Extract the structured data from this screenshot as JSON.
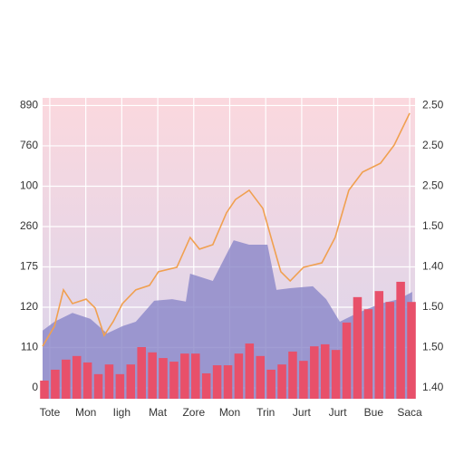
{
  "chart_data": {
    "type": "combo",
    "xlim": [
      -0.2,
      10.15
    ],
    "xticks": [
      {
        "value": 0,
        "label": "Tote"
      },
      {
        "value": 1,
        "label": "Mon"
      },
      {
        "value": 2,
        "label": "Iigh"
      },
      {
        "value": 3,
        "label": "Mat"
      },
      {
        "value": 4,
        "label": "Zore"
      },
      {
        "value": 5,
        "label": "Mon"
      },
      {
        "value": 6,
        "label": "Trin"
      },
      {
        "value": 7,
        "label": "Jurt"
      },
      {
        "value": 8,
        "label": "Jurt"
      },
      {
        "value": 9,
        "label": "Bue"
      },
      {
        "value": 10,
        "label": "Saca"
      }
    ],
    "ylim": [
      -27,
      719
    ],
    "yticks": [
      0,
      {
        "value": 100,
        "label": "110"
      },
      {
        "value": 200,
        "label": "120"
      },
      {
        "value": 300,
        "label": "175"
      },
      {
        "value": 400,
        "label": "260"
      },
      {
        "value": 500,
        "label": "100"
      },
      {
        "value": 600,
        "label": "760"
      },
      {
        "value": 700,
        "label": "890"
      }
    ],
    "y2lim": [
      -0.27,
      7.19
    ],
    "y2ticks": [
      {
        "value": 0,
        "label": "1.40"
      },
      {
        "value": 1,
        "label": "1.50"
      },
      {
        "value": 2,
        "label": "1.50"
      },
      {
        "value": 3,
        "label": "1.40"
      },
      {
        "value": 4,
        "label": "1.50"
      },
      {
        "value": 5,
        "label": "2.50"
      },
      {
        "value": 6,
        "label": "2.50"
      },
      {
        "value": 7,
        "label": "2.50"
      }
    ],
    "grid": true,
    "series": [
      {
        "type": "area",
        "color": "#8a86c8",
        "x": [
          -0.2,
          0.13,
          0.63,
          1.13,
          1.59,
          2.02,
          2.39,
          2.9,
          3.4,
          3.78,
          3.9,
          4.53,
          5.11,
          5.54,
          6.05,
          6.3,
          6.68,
          7.31,
          7.68,
          8.06,
          8.56,
          9.19,
          9.7,
          10.07
        ],
        "values": [
          142,
          164,
          186,
          171,
          135,
          153,
          164,
          216,
          220,
          214,
          283,
          265,
          366,
          355,
          355,
          243,
          247,
          252,
          220,
          164,
          186,
          209,
          220,
          238
        ]
      },
      {
        "type": "bar",
        "color": "#e8506a",
        "x": [
          -0.15,
          0.15,
          0.45,
          0.75,
          1.05,
          1.35,
          1.65,
          1.95,
          2.25,
          2.55,
          2.85,
          3.15,
          3.45,
          3.75,
          4.05,
          4.35,
          4.65,
          4.95,
          5.25,
          5.55,
          5.85,
          6.15,
          6.45,
          6.75,
          7.05,
          7.35,
          7.65,
          7.95,
          8.25,
          8.55,
          8.85,
          9.15,
          9.45,
          9.75,
          10.05
        ],
        "values": [
          18,
          45,
          70,
          79,
          63,
          34,
          58,
          34,
          58,
          101,
          88,
          74,
          65,
          85,
          85,
          36,
          56,
          56,
          85,
          110,
          79,
          45,
          58,
          90,
          67,
          103,
          108,
          94,
          162,
          225,
          195,
          240,
          213,
          263,
          213
        ]
      },
      {
        "type": "line",
        "color": "#f0a050",
        "axis": "y2",
        "x": [
          -0.2,
          0.13,
          0.38,
          0.63,
          1.01,
          1.26,
          1.51,
          1.76,
          2.02,
          2.39,
          2.77,
          3.02,
          3.53,
          3.9,
          4.16,
          4.53,
          4.91,
          5.16,
          5.54,
          5.92,
          6.17,
          6.42,
          6.68,
          7.05,
          7.56,
          7.93,
          8.31,
          8.69,
          9.19,
          9.57,
          10.0
        ],
        "values": [
          1.03,
          1.53,
          2.43,
          2.09,
          2.2,
          1.98,
          1.3,
          1.64,
          2.09,
          2.43,
          2.54,
          2.88,
          2.99,
          3.73,
          3.44,
          3.55,
          4.34,
          4.67,
          4.9,
          4.45,
          3.66,
          2.88,
          2.65,
          2.99,
          3.1,
          3.73,
          4.9,
          5.35,
          5.57,
          6.02,
          6.81
        ]
      }
    ]
  }
}
